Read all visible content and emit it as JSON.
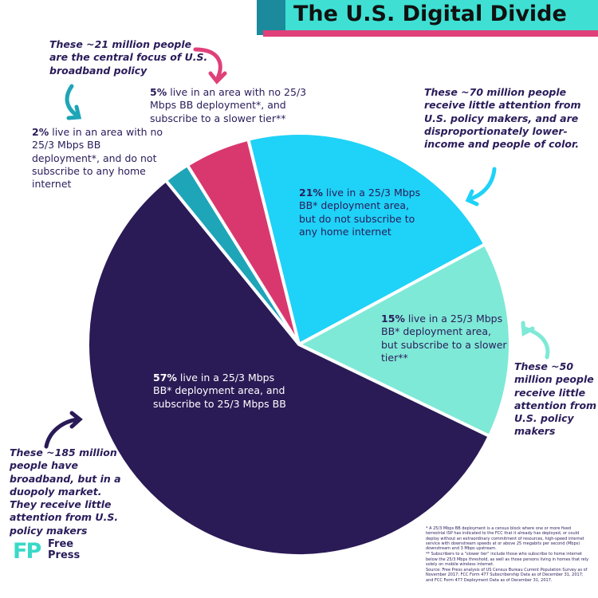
{
  "chart_data": {
    "type": "pie",
    "title": "The U.S. Digital Divide",
    "categories": [
      "live in an area with no 25/3 Mbps BB deployment*, and do not subscribe to any home internet",
      "live in an area with no 25/3 Mbps BB deployment*, and subscribe to a slower tier**",
      "live in a 25/3 Mbps BB* deployment area, but do not subscribe to any home internet",
      "live in a 25/3 Mbps BB* deployment area, but subscribe to a slower tier**",
      "live in a 25/3 Mbps BB* deployment area, and subscribe to 25/3 Mbps BB"
    ],
    "values": [
      2,
      5,
      21,
      15,
      57
    ],
    "value_labels": [
      "2%",
      "5%",
      "21%",
      "15%",
      "57%"
    ],
    "colors": [
      "#1ea5b8",
      "#d9386e",
      "#1fd2f7",
      "#7ee9d6",
      "#2a1a56"
    ],
    "annotations": [
      "These ~21 million people are the central focus of U.S. broadband policy",
      "These ~70 million people receive little attention from U.S. policy makers, and are disproportionately lower-income and people of color.",
      "These ~50 million people receive little attention from U.S. policy makers",
      "These ~185 million people have broadband, but in a duopoly market. They receive little attention from U.S. policy makers"
    ],
    "footnotes": [
      "* A 25/3 Mbps BB deployment is a census block where one or more fixed terrestrial ISP has indicated to the FCC that it already has deployed, or could deploy without an extraordinary commitment of resources, high-speed internet service with downstream speeds at or above 25 megabits per second (Mbps) downstream and 3 Mbps upstream.",
      "** Subscribers to a \"slower tier\" include those who subscribe to home internet below the 25/3 Mbps threshold, as well as those persons living in homes that rely solely on mobile wireless internet.",
      "Source: Free Press analysis of US Census Bureau Current Population Survey as of November 2017; FCC Form 477 Subscribership Data as of December 31, 2017; and FCC Form 477 Deployment Data as of December 31, 2017."
    ],
    "logo": {
      "mark": "FP",
      "name": [
        "Free",
        "Press"
      ]
    }
  }
}
